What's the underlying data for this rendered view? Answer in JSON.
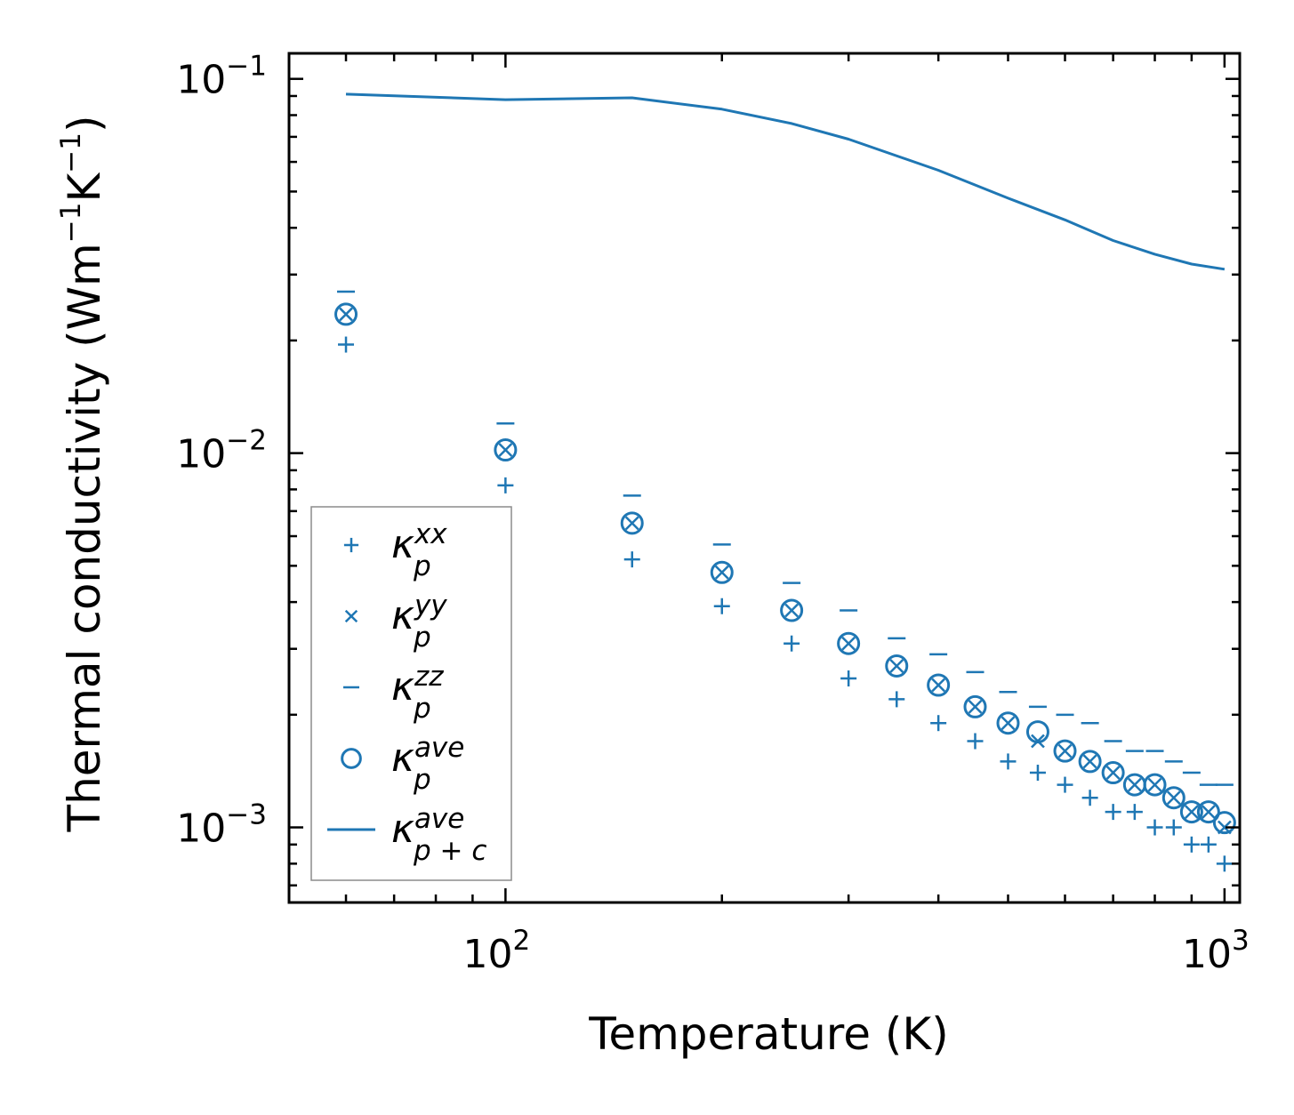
{
  "chart_data": {
    "type": "scatter",
    "title": "",
    "xlabel": "Temperature (K)",
    "ylabel_main": "Thermal conductivity (Wm",
    "ylabel_exp1": "−1",
    "ylabel_mid": "K",
    "ylabel_exp2": "−1",
    "ylabel_close": ")",
    "xscale": "log",
    "yscale": "log",
    "xlim": [
      50,
      1050
    ],
    "ylim": [
      0.00063,
      0.117
    ],
    "grid": false,
    "legend_position": "lower-left",
    "color": "#1f77b4",
    "x_ticks": [
      {
        "base": "10",
        "exp": "2",
        "value": 100
      },
      {
        "base": "10",
        "exp": "3",
        "value": 1000
      }
    ],
    "y_ticks": [
      {
        "base": "10",
        "exp": "−3",
        "value": 0.001
      },
      {
        "base": "10",
        "exp": "−2",
        "value": 0.01
      },
      {
        "base": "10",
        "exp": "−1",
        "value": 0.1
      }
    ],
    "x": [
      60,
      100,
      150,
      200,
      250,
      300,
      350,
      400,
      450,
      500,
      550,
      600,
      650,
      700,
      750,
      800,
      850,
      900,
      950,
      1000
    ],
    "series": [
      {
        "name": "kxx",
        "marker": "plus",
        "values": [
          0.0195,
          0.0082,
          0.0052,
          0.0039,
          0.0031,
          0.0025,
          0.0022,
          0.0019,
          0.0017,
          0.0015,
          0.0014,
          0.0013,
          0.0012,
          0.0011,
          0.0011,
          0.001,
          0.001,
          0.0009,
          0.0009,
          0.0008
        ]
      },
      {
        "name": "kyy",
        "marker": "x",
        "values": [
          0.0235,
          0.0102,
          0.0065,
          0.0048,
          0.0038,
          0.0031,
          0.0027,
          0.0024,
          0.0021,
          0.0019,
          0.0017,
          0.0016,
          0.0015,
          0.0014,
          0.0013,
          0.0013,
          0.0012,
          0.0011,
          0.0011,
          0.001
        ]
      },
      {
        "name": "kzz",
        "marker": "hline",
        "values": [
          0.027,
          0.012,
          0.0077,
          0.0057,
          0.0045,
          0.0038,
          0.0032,
          0.0029,
          0.0026,
          0.0023,
          0.0021,
          0.002,
          0.0019,
          0.0017,
          0.0016,
          0.0016,
          0.0015,
          0.0014,
          0.0013,
          0.0013
        ]
      },
      {
        "name": "kave",
        "marker": "circle",
        "values": [
          0.0235,
          0.0102,
          0.0065,
          0.0048,
          0.0038,
          0.0031,
          0.0027,
          0.0024,
          0.0021,
          0.0019,
          0.0018,
          0.0016,
          0.0015,
          0.0014,
          0.0013,
          0.0013,
          0.0012,
          0.0011,
          0.0011,
          0.00103
        ]
      },
      {
        "name": "kave_pc",
        "marker": "line",
        "x": [
          60,
          100,
          150,
          200,
          250,
          300,
          400,
          500,
          600,
          700,
          800,
          900,
          1000
        ],
        "values": [
          0.091,
          0.088,
          0.089,
          0.083,
          0.076,
          0.069,
          0.057,
          0.048,
          0.042,
          0.037,
          0.034,
          0.032,
          0.031
        ]
      }
    ],
    "legend": [
      {
        "marker": "plus",
        "symbol": "κ",
        "sub": "p",
        "sup": "xx"
      },
      {
        "marker": "x",
        "symbol": "κ",
        "sub": "p",
        "sup": "yy"
      },
      {
        "marker": "hline",
        "symbol": "κ",
        "sub": "p",
        "sup": "zz"
      },
      {
        "marker": "circle",
        "symbol": "κ",
        "sub": "p",
        "sup": "ave"
      },
      {
        "marker": "line",
        "symbol": "κ",
        "sub": "p + c",
        "sup": "ave"
      }
    ]
  }
}
